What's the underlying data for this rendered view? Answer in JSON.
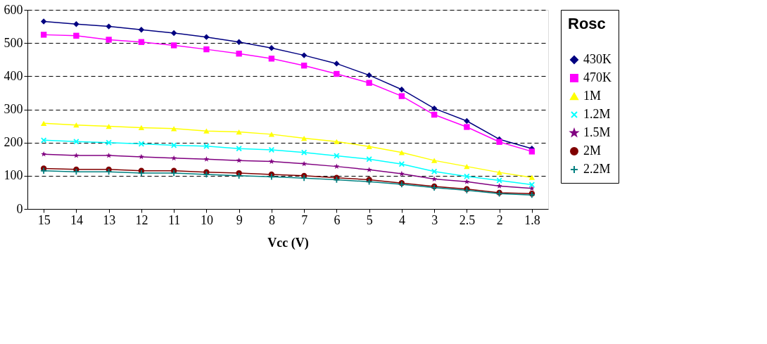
{
  "chart_data": {
    "type": "line",
    "xlabel": "Vcc     (V)",
    "legend_title": "Rosc",
    "categories": [
      "15",
      "14",
      "13",
      "12",
      "11",
      "10",
      "9",
      "8",
      "7",
      "6",
      "5",
      "4",
      "3",
      "2.5",
      "2",
      "1.8"
    ],
    "ylim": [
      0,
      600
    ],
    "yticks": [
      0,
      100,
      200,
      300,
      400,
      500,
      600
    ],
    "grid": "y",
    "legend": "right",
    "series": [
      {
        "name": "430K",
        "color": "#000080",
        "marker": "diamond",
        "values": [
          565,
          557,
          550,
          540,
          530,
          518,
          503,
          485,
          463,
          438,
          403,
          360,
          303,
          265,
          210,
          182
        ]
      },
      {
        "name": "470K",
        "color": "#ff00ff",
        "marker": "square",
        "values": [
          525,
          522,
          510,
          503,
          493,
          481,
          468,
          453,
          432,
          407,
          380,
          340,
          284,
          247,
          202,
          173
        ]
      },
      {
        "name": "1M",
        "color": "#ffff00",
        "marker": "triangle",
        "values": [
          258,
          253,
          249,
          245,
          242,
          235,
          232,
          225,
          213,
          203,
          188,
          170,
          146,
          128,
          110,
          95
        ]
      },
      {
        "name": "1.2M",
        "color": "#00ffff",
        "marker": "x",
        "values": [
          207,
          203,
          200,
          196,
          192,
          189,
          182,
          178,
          170,
          160,
          150,
          135,
          113,
          98,
          86,
          73
        ]
      },
      {
        "name": "1.5M",
        "color": "#800080",
        "marker": "star",
        "values": [
          165,
          161,
          161,
          157,
          153,
          150,
          146,
          143,
          136,
          128,
          118,
          106,
          90,
          82,
          69,
          62
        ]
      },
      {
        "name": "2M",
        "color": "#800000",
        "marker": "circle",
        "values": [
          122,
          119,
          119,
          115,
          115,
          111,
          108,
          104,
          100,
          94,
          88,
          78,
          68,
          60,
          49,
          46
        ]
      },
      {
        "name": "2.2M",
        "color": "#008080",
        "marker": "cross",
        "values": [
          115,
          112,
          112,
          108,
          108,
          104,
          100,
          97,
          93,
          88,
          82,
          74,
          64,
          56,
          46,
          42
        ]
      }
    ]
  }
}
